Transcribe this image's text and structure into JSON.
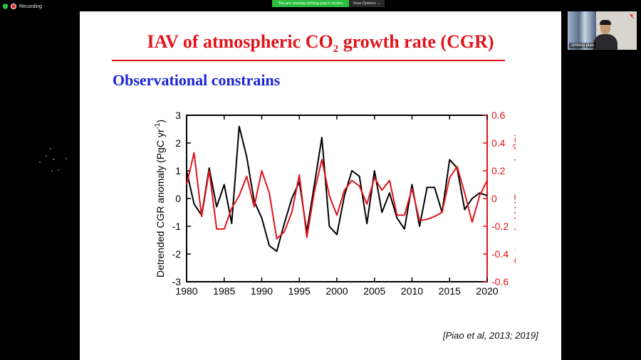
{
  "top_bar": {
    "recording_label": "Recording",
    "share_banner": "You are viewing shilong piao's screen",
    "view_options": "View Options"
  },
  "slide": {
    "title_main": "IAV of atmospheric CO",
    "title_sub": "2",
    "title_end": " growth rate (CGR)",
    "subtitle": "Observational constrains",
    "citation": "[Piao et al, 2013; 2019]"
  },
  "video": {
    "participant_name": "shilong piao"
  },
  "colors": {
    "title": "#e1141c",
    "subtitle": "#1b24d8",
    "cgr_series": "#000000",
    "mat_series": "#e1141c",
    "share_banner": "#2bbf3e"
  },
  "chart_data": {
    "type": "line",
    "xlabel": "",
    "ylabel_left": "Detrended CGR anomaly (PgC yr-1)",
    "ylabel_right": "Detrended MAT anomaly (oC)",
    "xlim": [
      1980,
      2020
    ],
    "ylim_left": [
      -3,
      3
    ],
    "ylim_right": [
      -0.6,
      0.6
    ],
    "x_ticks": [
      "1980",
      "1985",
      "1990",
      "1995",
      "2000",
      "2005",
      "2010",
      "2015",
      "2020"
    ],
    "y_ticks_left": [
      "3",
      "2",
      "1",
      "0",
      "-1",
      "-2",
      "-3"
    ],
    "y_ticks_right": [
      "0.6",
      "0.4",
      "0.2",
      "0",
      "-0.2",
      "-0.4",
      "-0.6"
    ],
    "series": [
      {
        "axis": "left",
        "color": "#000000",
        "x": [
          1980,
          1981,
          1982,
          1983,
          1984,
          1985,
          1986,
          1987,
          1988,
          1989,
          1990,
          1991,
          1992,
          1993,
          1994,
          1995,
          1996,
          1997,
          1998,
          1999,
          2000,
          2001,
          2002,
          2003,
          2004,
          2005,
          2006,
          2007,
          2008,
          2009,
          2010,
          2011,
          2012,
          2013,
          2014,
          2015,
          2016,
          2017,
          2018,
          2019,
          2020
        ],
        "y": [
          1.0,
          -0.2,
          -0.6,
          1.1,
          -0.3,
          0.5,
          -0.9,
          2.6,
          1.5,
          -0.1,
          -0.7,
          -1.7,
          -1.9,
          -0.9,
          0.0,
          0.6,
          -1.2,
          0.5,
          2.2,
          -1.0,
          -1.3,
          0.1,
          1.0,
          0.8,
          -0.9,
          1.0,
          -0.5,
          0.2,
          -0.7,
          -1.1,
          0.5,
          -1.0,
          0.4,
          0.4,
          -0.5,
          1.4,
          1.1,
          -0.4,
          0.0,
          0.2,
          0.1
        ]
      },
      {
        "axis": "right",
        "color": "#e1141c",
        "x": [
          1980,
          1981,
          1982,
          1983,
          1984,
          1985,
          1986,
          1987,
          1988,
          1989,
          1990,
          1991,
          1992,
          1993,
          1994,
          1995,
          1996,
          1997,
          1998,
          1999,
          2000,
          2001,
          2002,
          2003,
          2004,
          2005,
          2006,
          2007,
          2008,
          2009,
          2010,
          2011,
          2012,
          2013,
          2014,
          2015,
          2016,
          2017,
          2018,
          2019,
          2020
        ],
        "y": [
          0.1,
          0.33,
          -0.13,
          0.2,
          -0.22,
          -0.22,
          -0.07,
          0.02,
          0.16,
          -0.06,
          0.2,
          0.04,
          -0.29,
          -0.24,
          -0.1,
          0.17,
          -0.28,
          0.05,
          0.28,
          0.02,
          -0.12,
          0.06,
          0.13,
          0.09,
          -0.04,
          0.15,
          0.06,
          0.13,
          -0.12,
          -0.12,
          0.07,
          -0.16,
          -0.15,
          -0.13,
          -0.1,
          0.15,
          0.23,
          0.04,
          -0.17,
          0.02,
          0.13
        ]
      }
    ]
  }
}
